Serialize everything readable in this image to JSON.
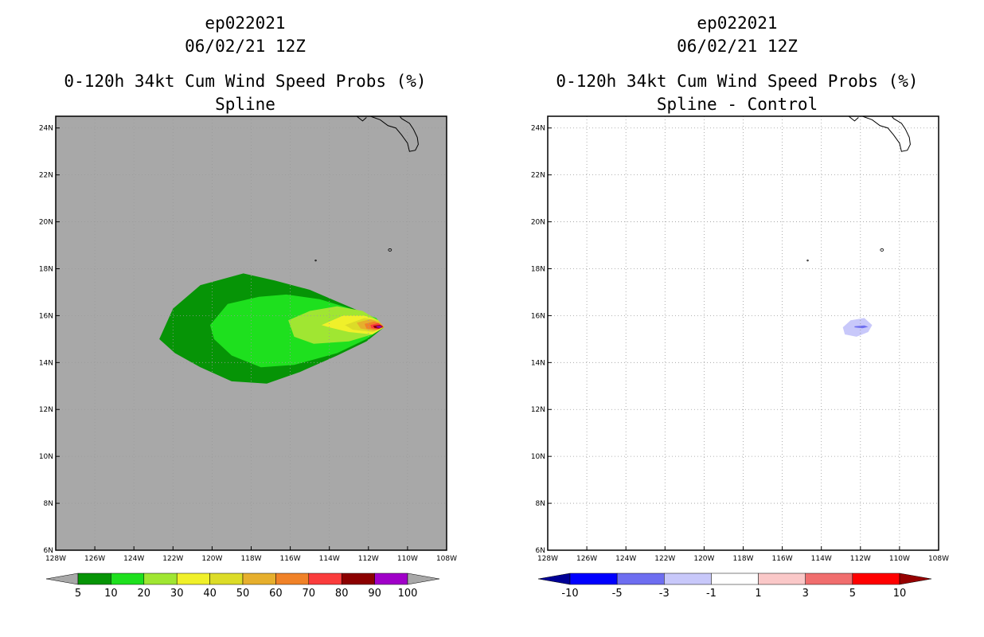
{
  "left_title": {
    "storm": "ep022021",
    "date": "06/02/21 12Z",
    "product": "0-120h 34kt Cum Wind Speed Probs (%)",
    "subtitle": "Spline"
  },
  "right_title": {
    "storm": "ep022021",
    "date": "06/02/21 12Z",
    "product": "0-120h 34kt Cum Wind Speed Probs (%)",
    "subtitle": "Spline - Control"
  },
  "chart_data": [
    {
      "type": "heatmap",
      "title": "0-120h 34kt Cum Wind Speed Probs (%) Spline",
      "x_ticks": [
        "128W",
        "126W",
        "124W",
        "122W",
        "120W",
        "118W",
        "116W",
        "114W",
        "112W",
        "110W",
        "108W"
      ],
      "y_ticks": [
        "6N",
        "8N",
        "10N",
        "12N",
        "14N",
        "16N",
        "18N",
        "20N",
        "22N",
        "24N"
      ],
      "xlim": [
        -128,
        -108
      ],
      "ylim": [
        6,
        24.5
      ],
      "grid": true,
      "background": "#a8a8a8",
      "colorbar": {
        "labels": [
          "5",
          "10",
          "20",
          "30",
          "40",
          "50",
          "60",
          "70",
          "80",
          "90",
          "100"
        ],
        "colors": [
          "#a8a8a8",
          "#069406",
          "#1ee01e",
          "#a0e632",
          "#f0f02a",
          "#dcdc28",
          "#e6af2d",
          "#f08228",
          "#fa3c3c",
          "#8b0000",
          "#a000c8",
          "#a8a8a8"
        ]
      },
      "contours": [
        {
          "level": 5,
          "color": "#069406",
          "points": [
            [
              -122.7,
              15.0
            ],
            [
              -122.0,
              16.3
            ],
            [
              -120.6,
              17.3
            ],
            [
              -118.4,
              17.8
            ],
            [
              -116.8,
              17.5
            ],
            [
              -115.0,
              17.1
            ],
            [
              -113.6,
              16.6
            ],
            [
              -112.2,
              16.1
            ],
            [
              -111.2,
              15.5
            ],
            [
              -112.1,
              14.9
            ],
            [
              -113.6,
              14.3
            ],
            [
              -115.5,
              13.6
            ],
            [
              -117.2,
              13.1
            ],
            [
              -119.0,
              13.2
            ],
            [
              -120.6,
              13.8
            ],
            [
              -121.9,
              14.4
            ]
          ]
        },
        {
          "level": 10,
          "color": "#1ee01e",
          "points": [
            [
              -120.1,
              15.6
            ],
            [
              -119.2,
              16.5
            ],
            [
              -117.6,
              16.8
            ],
            [
              -116.2,
              16.9
            ],
            [
              -114.5,
              16.7
            ],
            [
              -112.9,
              16.3
            ],
            [
              -111.6,
              15.9
            ],
            [
              -111.2,
              15.5
            ],
            [
              -112.1,
              15.0
            ],
            [
              -113.6,
              14.4
            ],
            [
              -115.8,
              13.9
            ],
            [
              -117.5,
              13.8
            ],
            [
              -119.0,
              14.3
            ],
            [
              -119.9,
              15.0
            ]
          ]
        },
        {
          "level": 20,
          "color": "#a0e632",
          "points": [
            [
              -116.1,
              15.8
            ],
            [
              -115.0,
              16.2
            ],
            [
              -113.6,
              16.4
            ],
            [
              -112.3,
              16.2
            ],
            [
              -111.5,
              15.8
            ],
            [
              -111.2,
              15.5
            ],
            [
              -111.8,
              15.2
            ],
            [
              -113.0,
              14.9
            ],
            [
              -114.8,
              14.8
            ],
            [
              -115.8,
              15.1
            ]
          ]
        },
        {
          "level": 30,
          "color": "#f0f02a",
          "points": [
            [
              -114.4,
              15.6
            ],
            [
              -113.3,
              16.0
            ],
            [
              -112.2,
              16.0
            ],
            [
              -111.5,
              15.8
            ],
            [
              -111.2,
              15.5
            ],
            [
              -111.8,
              15.2
            ],
            [
              -113.0,
              15.3
            ],
            [
              -114.0,
              15.5
            ]
          ]
        },
        {
          "level": 40,
          "color": "#dcdc28",
          "points": [
            [
              -113.2,
              15.6
            ],
            [
              -112.2,
              15.9
            ],
            [
              -111.5,
              15.8
            ],
            [
              -111.2,
              15.5
            ],
            [
              -111.8,
              15.3
            ],
            [
              -112.8,
              15.4
            ]
          ]
        },
        {
          "level": 50,
          "color": "#e6af2d",
          "points": [
            [
              -112.6,
              15.7
            ],
            [
              -111.9,
              15.85
            ],
            [
              -111.4,
              15.7
            ],
            [
              -111.2,
              15.5
            ],
            [
              -111.7,
              15.35
            ],
            [
              -112.4,
              15.45
            ]
          ]
        },
        {
          "level": 60,
          "color": "#f08228",
          "points": [
            [
              -112.2,
              15.65
            ],
            [
              -111.7,
              15.75
            ],
            [
              -111.3,
              15.6
            ],
            [
              -111.2,
              15.5
            ],
            [
              -111.6,
              15.4
            ],
            [
              -112.1,
              15.45
            ]
          ]
        },
        {
          "level": 70,
          "color": "#fa3c3c",
          "points": [
            [
              -111.9,
              15.6
            ],
            [
              -111.5,
              15.68
            ],
            [
              -111.25,
              15.55
            ],
            [
              -111.5,
              15.42
            ],
            [
              -111.85,
              15.47
            ]
          ]
        },
        {
          "level": 80,
          "color": "#8b0000",
          "points": [
            [
              -111.75,
              15.57
            ],
            [
              -111.4,
              15.6
            ],
            [
              -111.25,
              15.52
            ],
            [
              -111.45,
              15.45
            ],
            [
              -111.7,
              15.48
            ]
          ]
        },
        {
          "level": 90,
          "color": "#a000c8",
          "points": [
            [
              -111.6,
              15.55
            ],
            [
              -111.4,
              15.56
            ],
            [
              -111.3,
              15.51
            ],
            [
              -111.42,
              15.48
            ],
            [
              -111.58,
              15.5
            ]
          ]
        }
      ]
    },
    {
      "type": "heatmap",
      "title": "0-120h 34kt Cum Wind Speed Probs (%) Spline - Control",
      "x_ticks": [
        "128W",
        "126W",
        "124W",
        "122W",
        "120W",
        "118W",
        "116W",
        "114W",
        "112W",
        "110W",
        "108W"
      ],
      "y_ticks": [
        "6N",
        "8N",
        "10N",
        "12N",
        "14N",
        "16N",
        "18N",
        "20N",
        "22N",
        "24N"
      ],
      "xlim": [
        -128,
        -108
      ],
      "ylim": [
        6,
        24.5
      ],
      "grid": true,
      "background": "#ffffff",
      "colorbar": {
        "labels": [
          "-10",
          "-5",
          "-3",
          "-1",
          "1",
          "3",
          "5",
          "10"
        ],
        "colors": [
          "#000096",
          "#0000ff",
          "#6e6ef0",
          "#c8c8fa",
          "#ffffff",
          "#fac8c8",
          "#f06e6e",
          "#ff0000",
          "#960000"
        ]
      },
      "contours": [
        {
          "level": -1,
          "color": "#c8c8fa",
          "points": [
            [
              -112.9,
              15.5
            ],
            [
              -112.5,
              15.8
            ],
            [
              -111.8,
              15.9
            ],
            [
              -111.4,
              15.6
            ],
            [
              -111.6,
              15.3
            ],
            [
              -112.2,
              15.1
            ],
            [
              -112.8,
              15.2
            ]
          ]
        },
        {
          "level": -3,
          "color": "#6e6ef0",
          "points": [
            [
              -112.3,
              15.55
            ],
            [
              -111.8,
              15.58
            ],
            [
              -111.6,
              15.52
            ],
            [
              -111.9,
              15.46
            ],
            [
              -112.3,
              15.5
            ]
          ]
        }
      ]
    }
  ]
}
